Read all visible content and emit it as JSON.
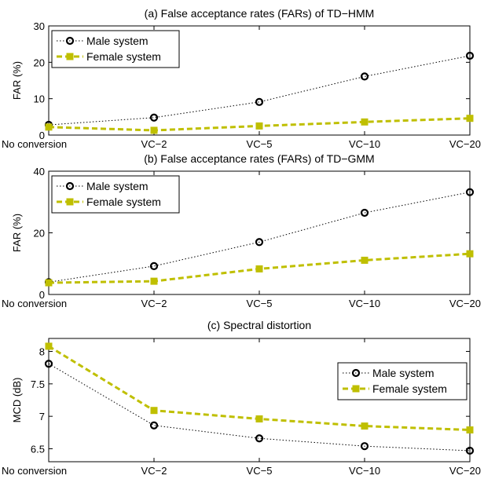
{
  "chart_data": [
    {
      "type": "line",
      "title": "(a) False acceptance rates (FARs) of TD−HMM",
      "xlabel": "",
      "ylabel": "FAR (%)",
      "categories": [
        "No conversion",
        "VC−2",
        "VC−5",
        "VC−10",
        "VC−20"
      ],
      "ylim": [
        0,
        30
      ],
      "yticks": [
        "0",
        "10",
        "20",
        "30"
      ],
      "legend_position": "top-left",
      "series": [
        {
          "name": "Male system",
          "values": [
            2.8,
            4.8,
            9.1,
            16.1,
            21.8
          ],
          "color": "#000000",
          "style": "dotted",
          "marker": "circle"
        },
        {
          "name": "Female system",
          "values": [
            2.2,
            1.3,
            2.5,
            3.6,
            4.6
          ],
          "color": "#bfbf00",
          "style": "dashed",
          "marker": "square"
        }
      ]
    },
    {
      "type": "line",
      "title": "(b) False acceptance rates (FARs) of TD−GMM",
      "xlabel": "",
      "ylabel": "FAR (%)",
      "categories": [
        "No conversion",
        "VC−2",
        "VC−5",
        "VC−10",
        "VC−20"
      ],
      "ylim": [
        0,
        40
      ],
      "yticks": [
        "0",
        "20",
        "40"
      ],
      "legend_position": "top-left",
      "series": [
        {
          "name": "Male system",
          "values": [
            4.0,
            9.2,
            17.0,
            26.5,
            33.2
          ],
          "color": "#000000",
          "style": "dotted",
          "marker": "circle"
        },
        {
          "name": "Female system",
          "values": [
            3.8,
            4.3,
            8.3,
            11.1,
            13.2
          ],
          "color": "#bfbf00",
          "style": "dashed",
          "marker": "square"
        }
      ]
    },
    {
      "type": "line",
      "title": "(c) Spectral distortion",
      "xlabel": "",
      "ylabel": "MCD (dB)",
      "categories": [
        "No conversion",
        "VC−2",
        "VC−5",
        "VC−10",
        "VC−20"
      ],
      "ylim": [
        6.3,
        8.2
      ],
      "yticks": [
        "6.5",
        "7",
        "7.5",
        "8"
      ],
      "legend_position": "top-right",
      "series": [
        {
          "name": "Male system",
          "values": [
            7.81,
            6.86,
            6.66,
            6.54,
            6.47
          ],
          "color": "#000000",
          "style": "dotted",
          "marker": "circle"
        },
        {
          "name": "Female system",
          "values": [
            8.08,
            7.09,
            6.96,
            6.85,
            6.79
          ],
          "color": "#bfbf00",
          "style": "dashed",
          "marker": "square"
        }
      ]
    }
  ]
}
